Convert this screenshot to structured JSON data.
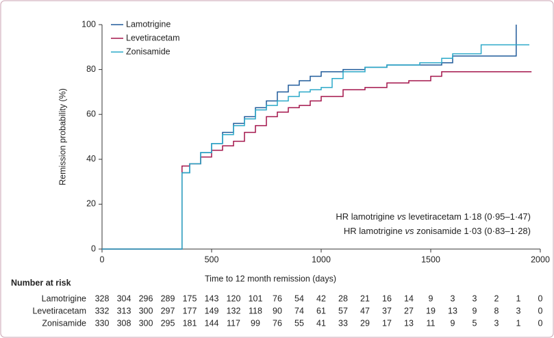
{
  "chart_data": {
    "type": "step",
    "xlabel": "Time to 12 month remission (days)",
    "ylabel": "Remission probability (%)",
    "xlim": [
      0,
      2000
    ],
    "ylim": [
      0,
      100
    ],
    "xticks": [
      0,
      500,
      1000,
      1500,
      2000
    ],
    "yticks": [
      0,
      20,
      40,
      60,
      80,
      100
    ],
    "legend": "upper left",
    "series": [
      {
        "name": "Lamotrigine",
        "color": "#1f5a9a",
        "x": [
          0,
          365,
          400,
          450,
          500,
          550,
          600,
          650,
          700,
          750,
          800,
          850,
          900,
          950,
          1000,
          1100,
          1200,
          1300,
          1550,
          1600,
          1890,
          1890
        ],
        "values": [
          0,
          34,
          38,
          43,
          47,
          52,
          56,
          59,
          63,
          66,
          70,
          73,
          75,
          77,
          79,
          80,
          81,
          82,
          83,
          86,
          86,
          100
        ]
      },
      {
        "name": "Levetiracetam",
        "color": "#a3134a",
        "x": [
          0,
          365,
          400,
          450,
          500,
          550,
          600,
          650,
          700,
          750,
          800,
          850,
          900,
          950,
          1000,
          1100,
          1200,
          1300,
          1400,
          1500,
          1550,
          1960
        ],
        "values": [
          0,
          37,
          38,
          41,
          44,
          46,
          48,
          52,
          55,
          59,
          61,
          63,
          64,
          66,
          68,
          71,
          72,
          74,
          75,
          77,
          79,
          79
        ]
      },
      {
        "name": "Zonisamide",
        "color": "#2aa8c8",
        "x": [
          0,
          365,
          400,
          450,
          500,
          550,
          600,
          650,
          700,
          750,
          800,
          850,
          900,
          950,
          1000,
          1050,
          1100,
          1200,
          1300,
          1450,
          1550,
          1600,
          1730,
          1950
        ],
        "values": [
          0,
          34,
          38,
          43,
          47,
          51,
          55,
          58,
          62,
          64,
          66,
          68,
          70,
          71,
          72,
          76,
          79,
          81,
          82,
          83,
          85,
          87,
          91,
          91
        ]
      }
    ],
    "annotations": [
      [
        "HR lamotrigine ",
        "vs",
        " levetiracetam 1·18 (0·95–1·47)"
      ],
      [
        "HR lamotrigine ",
        "vs",
        " zonisamide 1·03 (0·83–1·28)"
      ]
    ],
    "risk_table": {
      "title": "Number at risk",
      "rows": [
        {
          "name": "Lamotrigine",
          "values": [
            328,
            304,
            296,
            289,
            175,
            143,
            120,
            101,
            76,
            54,
            42,
            28,
            21,
            16,
            14,
            9,
            3,
            3,
            2,
            1,
            0
          ]
        },
        {
          "name": "Levetiracetam",
          "values": [
            332,
            313,
            300,
            297,
            177,
            149,
            132,
            118,
            90,
            74,
            61,
            57,
            47,
            37,
            27,
            19,
            13,
            9,
            8,
            3,
            0
          ]
        },
        {
          "name": "Zonisamide",
          "values": [
            330,
            308,
            300,
            295,
            181,
            144,
            117,
            99,
            76,
            55,
            41,
            33,
            29,
            17,
            13,
            11,
            9,
            5,
            3,
            1,
            0
          ]
        }
      ]
    }
  }
}
